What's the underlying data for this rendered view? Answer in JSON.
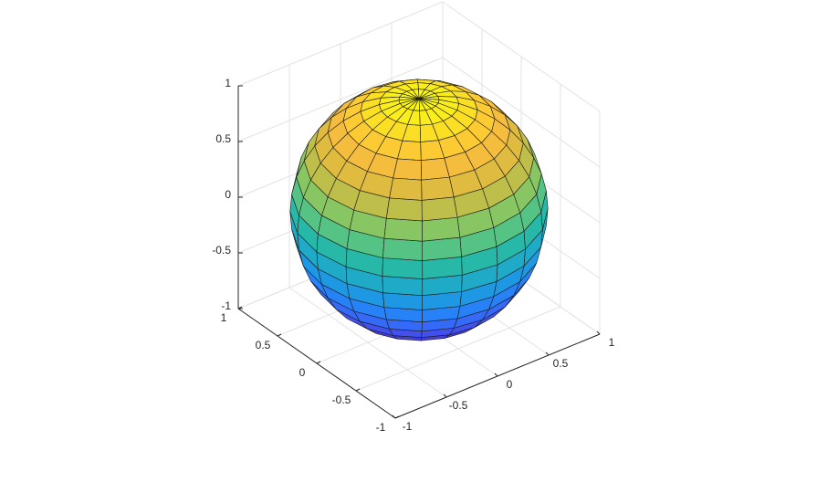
{
  "chart_data": {
    "type": "sphere",
    "center": [
      0,
      0,
      0
    ],
    "radius": 1,
    "segments": 20,
    "edge_color": "#1a1a1a",
    "colormap": [
      "#3e26a8",
      "#4747eb",
      "#2b7bfd",
      "#1aa1da",
      "#27b8a8",
      "#71c96d",
      "#cfbb42",
      "#fdbd3c",
      "#f9f914"
    ],
    "xlim": [
      -1,
      1
    ],
    "ylim": [
      -1,
      1
    ],
    "zlim": [
      -1,
      1
    ],
    "xticks": [
      -1,
      -0.5,
      0,
      0.5,
      1
    ],
    "yticks": [
      -1,
      -0.5,
      0,
      0.5,
      1
    ],
    "zticks": [
      -1,
      -0.5,
      0,
      0.5,
      1
    ],
    "grid": true
  }
}
